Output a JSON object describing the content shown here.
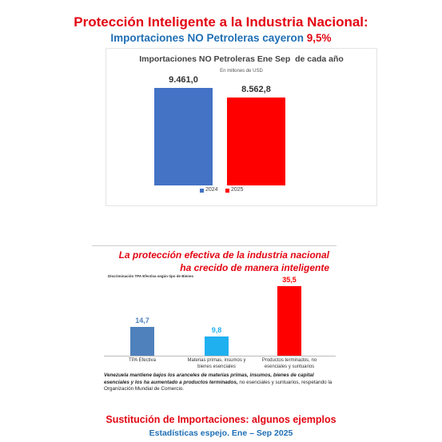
{
  "header": {
    "title": "Protección Inteligente a la Industria Nacional:",
    "subtitle": "Importaciones NO Petroleras cayeron",
    "subtitle_highlight": "9,5%"
  },
  "chart_data": [
    {
      "type": "bar",
      "title": "Importaciones NO Petroleras Ene Sep  de cada año",
      "subtitle": "En millones de USD",
      "series": [
        {
          "name": "2024",
          "color": "#4472c4",
          "values": [
            9461.0
          ],
          "value_labels": [
            "9.461,0"
          ]
        },
        {
          "name": "2025",
          "color": "#ff0000",
          "values": [
            8562.8
          ],
          "value_labels": [
            "8.562,8"
          ]
        }
      ],
      "legend": "bottom"
    },
    {
      "type": "bar",
      "title": [
        "La protección efectiva de la industria nacional",
        "ha crecido de manera inteligente"
      ],
      "subtitle": "Discriminación TPA Efectiva según tipo de Bienes",
      "categories": [
        "TPA Efectiva",
        "Materias primas, insumos y bienes esenciales",
        "Productos terminados, no esenciales y suntuarios"
      ],
      "values": [
        14.7,
        9.8,
        35.5
      ],
      "value_labels": [
        "14,7",
        "9,8",
        "35,5"
      ],
      "colors": [
        "#4f81bd",
        "#1fb0f0",
        "#ff0000"
      ],
      "note": [
        "Venezuela mantiene bajos los aranceles de materias primas, insumos, bienes de capital esenciales y los ha aumentado a productos terminados,",
        " no esenciales y suntuarios, respetando la Organización Mundial de Comercio."
      ]
    }
  ],
  "footer": {
    "title": "Sustitución de Importaciones: algunos ejemplos",
    "subtitle": "Estadísticas espejo. Ene – Sep 2025"
  }
}
